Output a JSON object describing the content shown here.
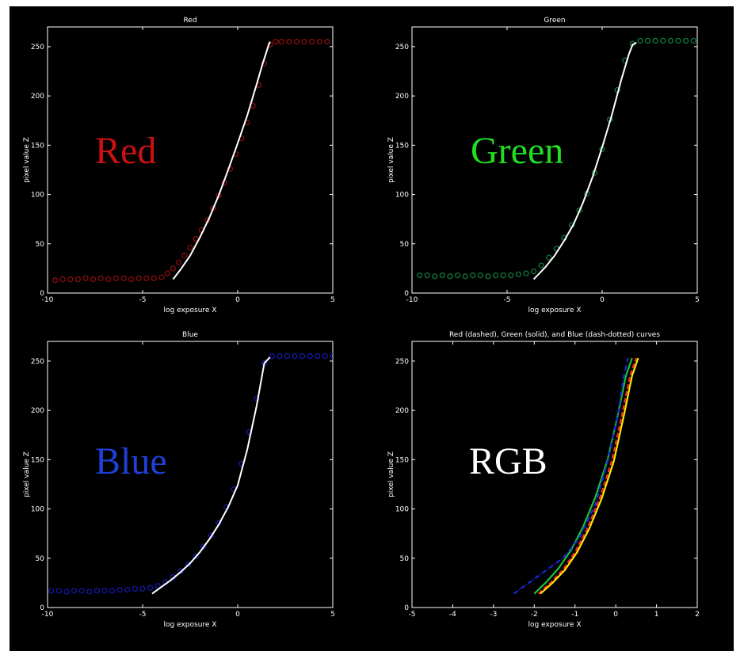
{
  "chart_data": [
    {
      "type": "scatter",
      "title": "Red",
      "xlabel": "log exposure X",
      "ylabel": "pixel value Z",
      "xlim": [
        -10,
        5
      ],
      "ylim": [
        0,
        270
      ],
      "xticks": [
        -10,
        -5,
        0,
        5
      ],
      "yticks": [
        0,
        50,
        100,
        150,
        200,
        250
      ],
      "overlay_label": "Red",
      "overlay_color": "#cc1111",
      "point_color": "#8b0d0d",
      "curve_color": "#ffffff",
      "grid": false,
      "series": [
        {
          "name": "samples",
          "x": [
            -9.6,
            -9.2,
            -8.8,
            -8.4,
            -8.0,
            -7.6,
            -7.2,
            -6.8,
            -6.4,
            -6.0,
            -5.6,
            -5.2,
            -4.8,
            -4.4,
            -4.0,
            -3.7,
            -3.4,
            -3.1,
            -2.8,
            -2.5,
            -2.2,
            -1.9,
            -1.6,
            -1.3,
            -1.0,
            -0.7,
            -0.4,
            -0.1,
            0.2,
            0.5,
            0.8,
            1.1,
            1.4,
            1.7,
            2.0,
            2.3,
            2.7,
            3.1,
            3.5,
            3.9,
            4.3,
            4.7
          ],
          "y": [
            13,
            14,
            14,
            14,
            15,
            14,
            15,
            14,
            15,
            15,
            14,
            15,
            15,
            15,
            16,
            20,
            25,
            31,
            38,
            46,
            55,
            64,
            74,
            86,
            99,
            112,
            126,
            141,
            157,
            173,
            190,
            211,
            233,
            252,
            255,
            255,
            255,
            255,
            255,
            255,
            255,
            255
          ]
        },
        {
          "name": "fit",
          "x": [
            -3.4,
            -3.0,
            -2.5,
            -2.0,
            -1.5,
            -1.0,
            -0.5,
            0.0,
            0.5,
            1.0,
            1.3,
            1.6,
            1.7
          ],
          "y": [
            14,
            24,
            38,
            56,
            76,
            99,
            125,
            152,
            180,
            212,
            232,
            250,
            255
          ]
        }
      ]
    },
    {
      "type": "scatter",
      "title": "Green",
      "xlabel": "log exposure X",
      "ylabel": "pixel value Z",
      "xlim": [
        -10,
        5
      ],
      "ylim": [
        0,
        270
      ],
      "xticks": [
        -10,
        -5,
        0,
        5
      ],
      "yticks": [
        0,
        50,
        100,
        150,
        200,
        250
      ],
      "overlay_label": "Green",
      "overlay_color": "#22dd22",
      "point_color": "#0e7a3c",
      "curve_color": "#ffffff",
      "grid": false,
      "series": [
        {
          "name": "samples",
          "x": [
            -9.6,
            -9.2,
            -8.8,
            -8.4,
            -8.0,
            -7.6,
            -7.2,
            -6.8,
            -6.4,
            -6.0,
            -5.6,
            -5.2,
            -4.8,
            -4.4,
            -4.0,
            -3.6,
            -3.2,
            -2.8,
            -2.4,
            -2.0,
            -1.6,
            -1.2,
            -0.8,
            -0.4,
            0.0,
            0.4,
            0.8,
            1.2,
            1.6,
            2.0,
            2.4,
            2.8,
            3.2,
            3.6,
            4.0,
            4.4,
            4.8
          ],
          "y": [
            18,
            18,
            17,
            18,
            17,
            18,
            17,
            18,
            18,
            17,
            18,
            18,
            18,
            19,
            20,
            22,
            28,
            36,
            45,
            56,
            69,
            84,
            101,
            122,
            146,
            176,
            206,
            236,
            253,
            256,
            256,
            256,
            256,
            256,
            256,
            256,
            256
          ]
        },
        {
          "name": "fit",
          "x": [
            -3.6,
            -3.0,
            -2.5,
            -2.0,
            -1.5,
            -1.0,
            -0.5,
            0.0,
            0.5,
            1.0,
            1.4,
            1.6,
            1.8
          ],
          "y": [
            14,
            26,
            38,
            53,
            70,
            92,
            118,
            148,
            180,
            216,
            242,
            252,
            254
          ]
        }
      ]
    },
    {
      "type": "scatter",
      "title": "Blue",
      "xlabel": "log exposure X",
      "ylabel": "pixel value Z",
      "xlim": [
        -10,
        5
      ],
      "ylim": [
        0,
        270
      ],
      "xticks": [
        -10,
        -5,
        0,
        5
      ],
      "yticks": [
        0,
        50,
        100,
        150,
        200,
        250
      ],
      "overlay_label": "Blue",
      "overlay_color": "#1f3fd9",
      "point_color": "#1518a8",
      "curve_color": "#ffffff",
      "grid": false,
      "series": [
        {
          "name": "samples",
          "x": [
            -9.8,
            -9.4,
            -9.0,
            -8.6,
            -8.2,
            -7.8,
            -7.4,
            -7.0,
            -6.6,
            -6.2,
            -5.8,
            -5.4,
            -5.0,
            -4.6,
            -4.2,
            -3.8,
            -3.4,
            -3.0,
            -2.6,
            -2.2,
            -1.8,
            -1.4,
            -1.0,
            -0.6,
            -0.2,
            0.2,
            0.6,
            1.0,
            1.4,
            1.8,
            2.2,
            2.6,
            3.0,
            3.4,
            3.8,
            4.2,
            4.6,
            5.0
          ],
          "y": [
            17,
            17,
            16,
            17,
            17,
            16,
            17,
            17,
            17,
            18,
            18,
            19,
            19,
            20,
            22,
            26,
            31,
            37,
            44,
            52,
            62,
            73,
            86,
            102,
            120,
            146,
            178,
            212,
            248,
            255,
            255,
            255,
            255,
            255,
            255,
            255,
            255,
            255
          ]
        },
        {
          "name": "fit",
          "x": [
            -4.5,
            -4.0,
            -3.5,
            -3.0,
            -2.5,
            -2.0,
            -1.5,
            -1.0,
            -0.5,
            0.0,
            0.5,
            1.0,
            1.4,
            1.7
          ],
          "y": [
            14,
            21,
            28,
            36,
            45,
            56,
            69,
            84,
            102,
            124,
            160,
            205,
            248,
            254
          ]
        }
      ]
    },
    {
      "type": "line",
      "title": "Red (dashed), Green (solid), and Blue (dash-dotted) curves",
      "xlabel": "log exposure X",
      "ylabel": "pixel value Z",
      "overlay_label": "RGB",
      "overlay_color": "#ffffff",
      "xlim": [
        -5,
        2
      ],
      "ylim": [
        0,
        270
      ],
      "xticks": [
        -5,
        -4,
        -3,
        -2,
        -1,
        0,
        1,
        2
      ],
      "yticks": [
        0,
        50,
        100,
        150,
        200,
        250
      ],
      "grid": false,
      "series": [
        {
          "name": "Red",
          "color": "#ff2a2a",
          "dash": "dashed",
          "x": [
            -1.9,
            -1.6,
            -1.3,
            -1.0,
            -0.7,
            -0.4,
            -0.1,
            0.15,
            0.35,
            0.5
          ],
          "y": [
            14,
            25,
            38,
            56,
            80,
            110,
            148,
            195,
            235,
            253
          ]
        },
        {
          "name": "Green",
          "color": "#19c23a",
          "dash": "solid",
          "x": [
            -2.0,
            -1.7,
            -1.4,
            -1.1,
            -0.8,
            -0.5,
            -0.2,
            0.05,
            0.25,
            0.4
          ],
          "y": [
            14,
            26,
            40,
            58,
            82,
            112,
            150,
            195,
            235,
            253
          ]
        },
        {
          "name": "Blue",
          "color": "#1a2adc",
          "dash": "dash-dotted",
          "x": [
            -2.5,
            -2.1,
            -1.7,
            -1.3,
            -0.9,
            -0.5,
            -0.2,
            0.05,
            0.2,
            0.3
          ],
          "y": [
            14,
            26,
            38,
            50,
            70,
            105,
            148,
            195,
            235,
            253
          ]
        },
        {
          "name": "Yellow",
          "color": "#ffe800",
          "dash": "solid",
          "x": [
            -1.85,
            -1.55,
            -1.25,
            -0.95,
            -0.65,
            -0.35,
            -0.05,
            0.2,
            0.4,
            0.55
          ],
          "y": [
            14,
            25,
            38,
            56,
            80,
            110,
            148,
            195,
            235,
            253
          ]
        }
      ]
    }
  ]
}
